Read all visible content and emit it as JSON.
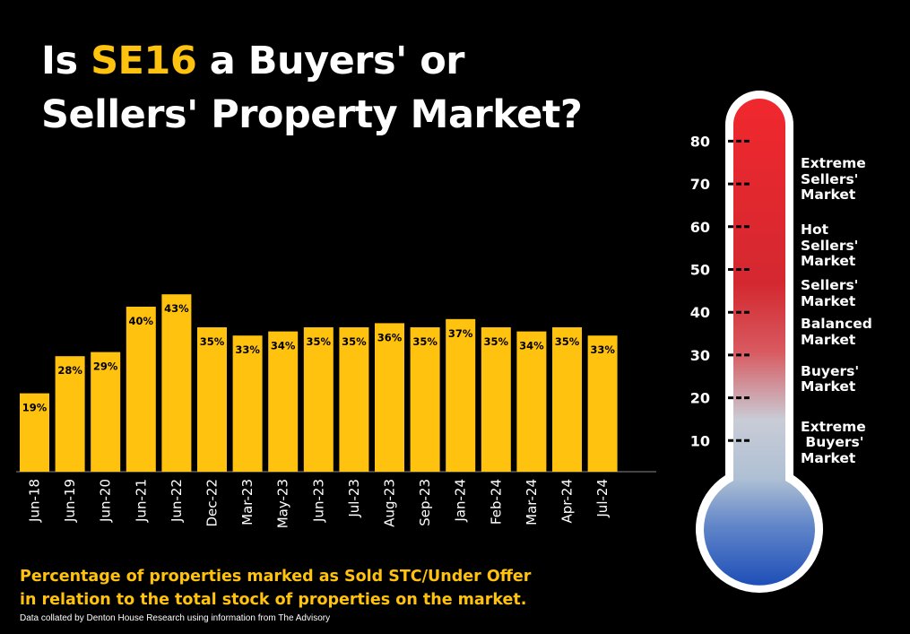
{
  "title": {
    "prefix": "Is ",
    "highlight": "SE16",
    "rest_line1": " a Buyers' or",
    "line2": "Sellers' Property Market?"
  },
  "caption": {
    "line1": "Percentage of properties marked as Sold STC/Under Offer",
    "line2": "in relation to the total stock of properties on the market."
  },
  "source": "Data collated by Denton House Research using information from The Advisory",
  "colors": {
    "bar": "#FFC20E",
    "highlight": "#FFC20E",
    "background": "#000000",
    "thermo_top": "#F0282E",
    "thermo_bottom": "#1E4FB8"
  },
  "chart_data": {
    "type": "bar",
    "categories": [
      "Jun-18",
      "Jun-19",
      "Jun-20",
      "Jun-21",
      "Jun-22",
      "Dec-22",
      "Mar-23",
      "May-23",
      "Jun-23",
      "Jul-23",
      "Aug-23",
      "Sep-23",
      "Jan-24",
      "Feb-24",
      "Mar-24",
      "Apr-24",
      "Jul-24"
    ],
    "values": [
      19,
      28,
      29,
      40,
      43,
      35,
      33,
      34,
      35,
      35,
      36,
      35,
      37,
      35,
      34,
      35,
      33
    ],
    "data_labels": [
      "19%",
      "28%",
      "29%",
      "40%",
      "43%",
      "35%",
      "33%",
      "34%",
      "35%",
      "35%",
      "36%",
      "35%",
      "37%",
      "35%",
      "34%",
      "35%",
      "33%"
    ],
    "ylim": [
      0,
      100
    ],
    "grid": false,
    "legend": "none"
  },
  "thermometer": {
    "scale": [
      80,
      70,
      60,
      50,
      40,
      30,
      20,
      10
    ],
    "zones": [
      {
        "lines": [
          "Extreme",
          "Sellers'",
          "Market"
        ],
        "top_value": 76
      },
      {
        "lines": [
          "Hot",
          "Sellers'",
          "Market"
        ],
        "top_value": 60.5
      },
      {
        "lines": [
          "Sellers'",
          "Market"
        ],
        "top_value": 47.5
      },
      {
        "lines": [
          "Balanced",
          "Market"
        ],
        "top_value": 38.5
      },
      {
        "lines": [
          "Buyers'",
          "Market"
        ],
        "top_value": 27.5
      },
      {
        "lines": [
          "Extreme",
          " Buyers'",
          "Market"
        ],
        "top_value": 14.5
      }
    ]
  }
}
